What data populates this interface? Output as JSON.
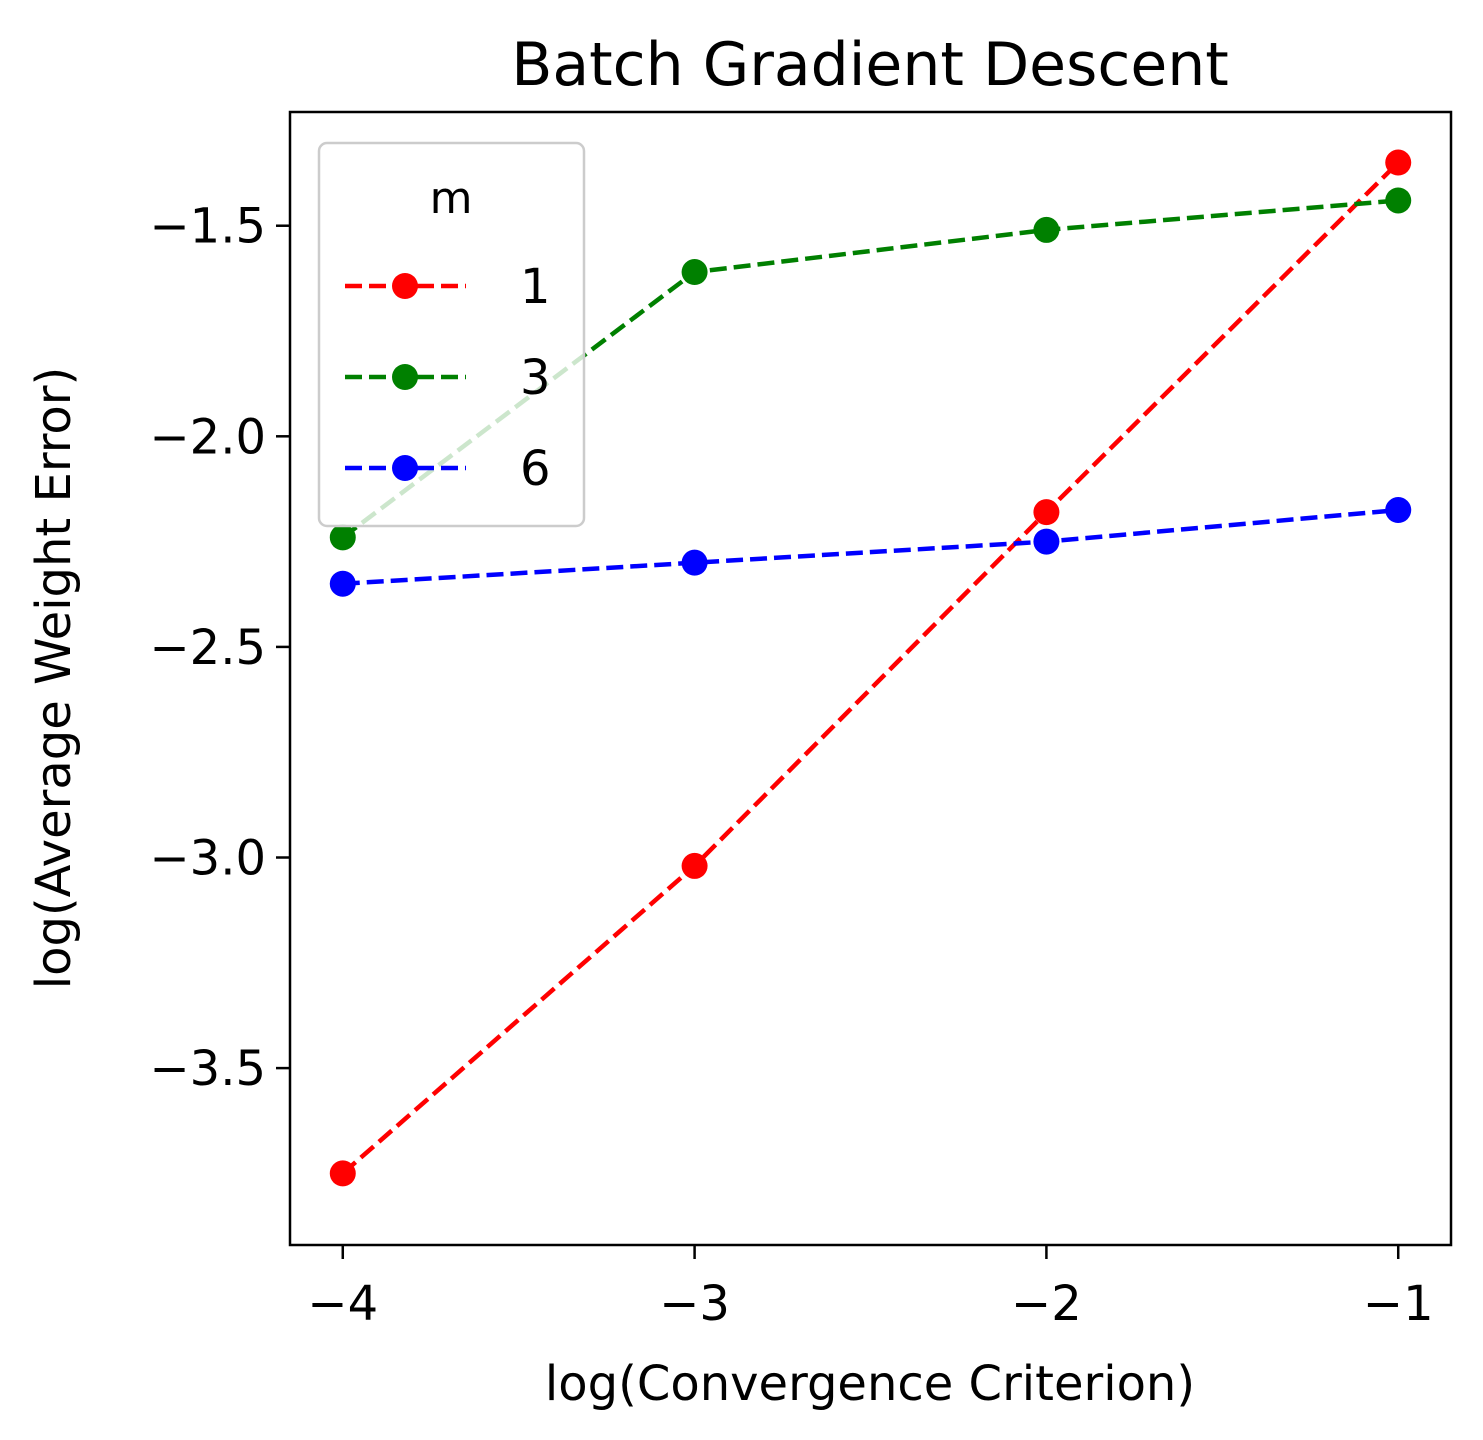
{
  "chart_data": {
    "type": "line",
    "title": "Batch Gradient Descent",
    "xlabel": "log(Convergence Criterion)",
    "ylabel": "log(Average Weight Error)",
    "x": [
      -4,
      -3,
      -2,
      -1
    ],
    "xticks": [
      -4,
      -3,
      -2,
      -1
    ],
    "xtick_labels": [
      "−4",
      "−3",
      "−2",
      "−1"
    ],
    "yticks": [
      -3.5,
      -3.0,
      -2.5,
      -2.0,
      -1.5
    ],
    "ytick_labels": [
      "−3.5",
      "−3.0",
      "−2.5",
      "−2.0",
      "−1.5"
    ],
    "xlim": [
      -4.15,
      -0.85
    ],
    "ylim": [
      -3.92,
      -1.23
    ],
    "grid": false,
    "legend": {
      "title": "m",
      "placement": "top-left"
    },
    "series": [
      {
        "name": "1",
        "color": "#ff0000",
        "values": [
          -3.75,
          -3.02,
          -2.18,
          -1.35
        ]
      },
      {
        "name": "3",
        "color": "#008000",
        "values": [
          -2.24,
          -1.61,
          -1.51,
          -1.44
        ]
      },
      {
        "name": "6",
        "color": "#0000ff",
        "values": [
          -2.35,
          -2.3,
          -2.25,
          -2.175
        ]
      }
    ]
  }
}
